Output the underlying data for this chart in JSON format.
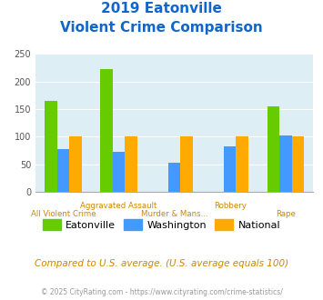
{
  "title_line1": "2019 Eatonville",
  "title_line2": "Violent Crime Comparison",
  "eatonville": [
    165,
    222,
    0,
    0,
    155
  ],
  "washington": [
    78,
    73,
    53,
    83,
    103
  ],
  "national": [
    100,
    100,
    100,
    100,
    100
  ],
  "bar_color_eatonville": "#66cc00",
  "bar_color_washington": "#4499ff",
  "bar_color_national": "#ffaa00",
  "ylim": [
    0,
    250
  ],
  "yticks": [
    0,
    50,
    100,
    150,
    200,
    250
  ],
  "bg_color": "#deeef5",
  "title_color": "#1166cc",
  "footer_text": "Compared to U.S. average. (U.S. average equals 100)",
  "copyright_text": "© 2025 CityRating.com - https://www.cityrating.com/crime-statistics/",
  "legend_labels": [
    "Eatonville",
    "Washington",
    "National"
  ],
  "xlabel_row1": [
    "All Violent Crime",
    "Aggravated Assault",
    "Murder & Mans...",
    "Robbery",
    "Rape"
  ],
  "xlabel_row2_offset": [
    0,
    1,
    2,
    3,
    4
  ],
  "label_color": "#cc8800"
}
